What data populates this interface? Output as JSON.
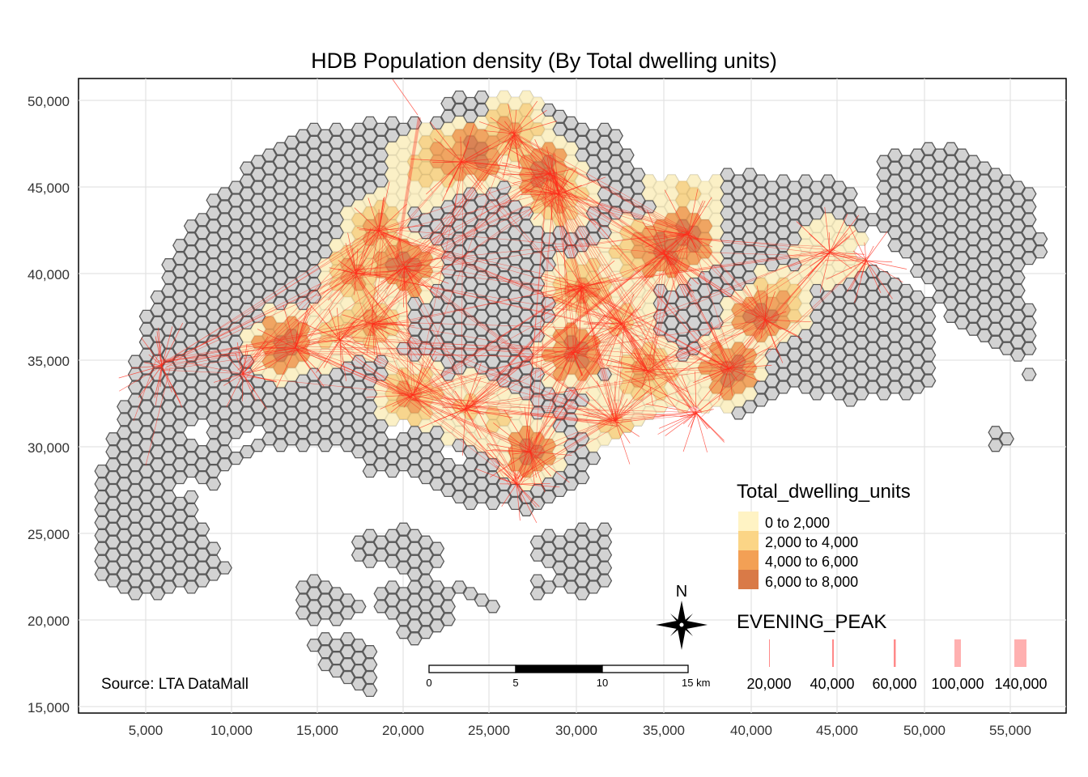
{
  "title": "HDB Population density (By Total dwelling units)",
  "source": "Source: LTA DataMall",
  "axes": {
    "x_ticks": [
      "5,000",
      "10,000",
      "15,000",
      "20,000",
      "25,000",
      "30,000",
      "35,000",
      "40,000",
      "45,000",
      "50,000",
      "55,000"
    ],
    "y_ticks": [
      "50,000",
      "45,000",
      "40,000",
      "35,000",
      "30,000",
      "25,000",
      "20,000",
      "15,000"
    ]
  },
  "legend_fill": {
    "title": "Total_dwelling_units",
    "items": [
      {
        "label": "0 to 2,000",
        "color": "#fff3c4"
      },
      {
        "label": "2,000 to 4,000",
        "color": "#fbd586"
      },
      {
        "label": "4,000 to 6,000",
        "color": "#f3a055"
      },
      {
        "label": "6,000 to 8,000",
        "color": "#d97a47"
      }
    ]
  },
  "legend_lines": {
    "title": "EVENING_PEAK",
    "items": [
      {
        "label": "20,000",
        "value": 20000
      },
      {
        "label": "40,000",
        "value": 40000
      },
      {
        "label": "60,000",
        "value": 60000
      },
      {
        "label": "100,000",
        "value": 100000
      },
      {
        "label": "140,000",
        "value": 140000
      }
    ],
    "color": "#ff8a8a"
  },
  "scale_bar": {
    "labels": [
      "0",
      "5",
      "10",
      "15 km"
    ]
  },
  "north_arrow": {
    "label": "N"
  },
  "colors": {
    "hex_fill": "#d3d3d3",
    "hex_stroke": "#5a5a5a",
    "flow": "#ff2a1a",
    "grid": "#e3e3e3"
  }
}
